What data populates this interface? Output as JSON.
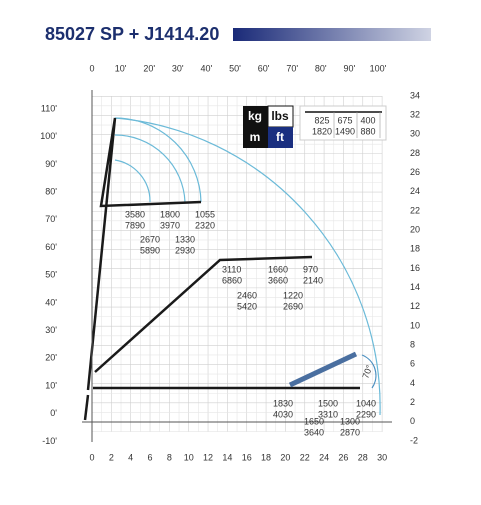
{
  "header": {
    "title": "85027 SP + J1414.20"
  },
  "axes": {
    "top": [
      "0",
      "10'",
      "20'",
      "30'",
      "40'",
      "50'",
      "60'",
      "70'",
      "80'",
      "90'",
      "100'"
    ],
    "left": [
      "110'",
      "100'",
      "90'",
      "80'",
      "70'",
      "60'",
      "50'",
      "40'",
      "30'",
      "20'",
      "10'",
      "0'",
      "-10'"
    ],
    "bottom": [
      "0",
      "2",
      "4",
      "6",
      "8",
      "10",
      "12",
      "14",
      "16",
      "18",
      "20",
      "22",
      "24",
      "26",
      "28",
      "30"
    ],
    "right": [
      "34",
      "32",
      "30",
      "28",
      "26",
      "24",
      "22",
      "20",
      "18",
      "16",
      "14",
      "12",
      "10",
      "8",
      "6",
      "4",
      "2",
      "0",
      "-2"
    ]
  },
  "legend": {
    "units": [
      "kg",
      "lbs",
      "m",
      "ft"
    ],
    "rows": [
      [
        "825",
        "675",
        "400"
      ],
      [
        "1820",
        "1490",
        "880"
      ]
    ]
  },
  "loads": [
    {
      "kg": "3580",
      "lbs": "7890"
    },
    {
      "kg": "1800",
      "lbs": "3970"
    },
    {
      "kg": "1055",
      "lbs": "2320"
    },
    {
      "kg": "2670",
      "lbs": "5890"
    },
    {
      "kg": "1330",
      "lbs": "2930"
    },
    {
      "kg": "3110",
      "lbs": "6860"
    },
    {
      "kg": "1660",
      "lbs": "3660"
    },
    {
      "kg": "970",
      "lbs": "2140"
    },
    {
      "kg": "2460",
      "lbs": "5420"
    },
    {
      "kg": "1220",
      "lbs": "2690"
    },
    {
      "kg": "1830",
      "lbs": "4030"
    },
    {
      "kg": "1500",
      "lbs": "3310"
    },
    {
      "kg": "1040",
      "lbs": "2290"
    },
    {
      "kg": "1650",
      "lbs": "3640"
    },
    {
      "kg": "1300",
      "lbs": "2870"
    }
  ],
  "angle": "70°"
}
